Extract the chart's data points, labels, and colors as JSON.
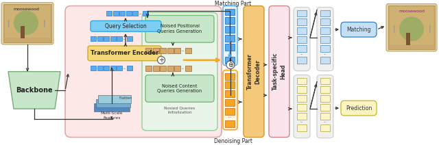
{
  "bg": "#ffffff",
  "fw": 6.4,
  "fh": 2.12,
  "dpi": 100,
  "c_backbone": "#c8e6c9",
  "c_blue": "#5aacee",
  "c_orange": "#f5a623",
  "c_tan": "#d4a96a",
  "c_encoder": "#f5d87a",
  "c_qsel": "#7ecef4",
  "c_noised_green": "#c8e6c9",
  "c_outer_pink": "#fde8e8",
  "c_inner_green": "#eaf5ea",
  "c_tdec": "#f5c97a",
  "c_thead": "#fce4ec",
  "c_lblue": "#c5dff5",
  "c_lyellow": "#fdf5c8",
  "c_col_bg_blue": "#ddeeff",
  "c_col_bg_yellow": "#fffff0",
  "c_matching_box": "#c5dff5",
  "c_prediction_box": "#fdf5c0",
  "c_concat_outline": "#64b5f6",
  "lbl_backbone": "Backbone",
  "lbl_qsel": "Query Selection",
  "lbl_encoder": "Transformer Encoder",
  "lbl_mscale": "Multi-Scale\nFeatures",
  "lbl_flatten": "Flatten",
  "lbl_npos": "Noised Positional\nQueries Generation",
  "lbl_ncont": "Noised Content\nQueries Generation",
  "lbl_ninit": "Nosied Queries\nInitialization",
  "lbl_tdec": "Transformer\nDecoder",
  "lbl_thead": "Task-specific\nHead",
  "lbl_matching": "Matching",
  "lbl_prediction": "Prediction",
  "lbl_mpart": "Matching Part",
  "lbl_dpart": "Denoising Part"
}
